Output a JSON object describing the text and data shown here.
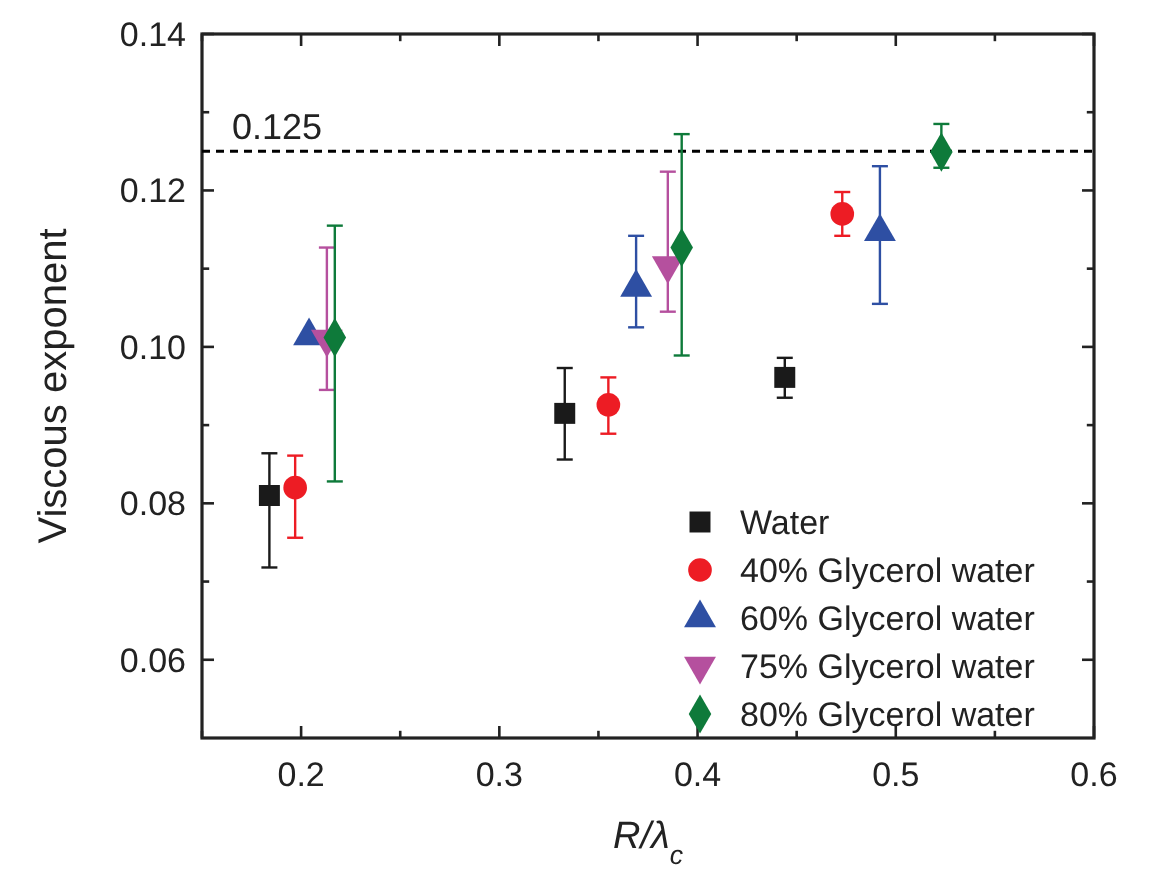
{
  "chart_data": {
    "type": "scatter",
    "xlabel": "R/λ$_{c}$",
    "ylabel": "Viscous exponent",
    "xlim": [
      0.15,
      0.6
    ],
    "xticks": [
      {
        "value": 0.15,
        "label": null
      },
      0.2,
      {
        "value": 0.25,
        "label": null
      },
      0.3,
      {
        "value": 0.35,
        "label": null
      },
      0.4,
      {
        "value": 0.45,
        "label": null
      },
      0.5,
      {
        "value": 0.55,
        "label": null
      },
      0.6
    ],
    "ylim": [
      0.05,
      0.14
    ],
    "yticks": [
      {
        "value": 0.06,
        "label": "0.06"
      },
      {
        "value": 0.07,
        "label": null
      },
      {
        "value": 0.08,
        "label": "0.08"
      },
      {
        "value": 0.09,
        "label": null
      },
      {
        "value": 0.1,
        "label": "0.10"
      },
      {
        "value": 0.11,
        "label": null
      },
      {
        "value": 0.12,
        "label": "0.12"
      },
      {
        "value": 0.13,
        "label": null
      },
      {
        "value": 0.14,
        "label": "0.14"
      }
    ],
    "grid": false,
    "legend": "bottom right",
    "ref_lines": [
      {
        "axis": "y",
        "value": 0.125,
        "label": "0.125",
        "line_style": "dashed",
        "color": "#000000"
      }
    ],
    "series": [
      {
        "name": "Water",
        "color": "#1a1a1a",
        "marker": "square",
        "x": [
          0.184,
          0.333,
          0.444
        ],
        "values": [
          0.081,
          0.0915,
          0.0961
        ],
        "errors": [
          [
            0.0718,
            0.0864
          ],
          [
            0.0856,
            0.0973
          ],
          [
            0.0935,
            0.0986
          ]
        ]
      },
      {
        "name": "40% Glycerol water",
        "color": "#ed1c24",
        "marker": "circle",
        "x": [
          0.197,
          0.355,
          0.473
        ],
        "values": [
          0.082,
          0.0926,
          0.117
        ],
        "errors": [
          [
            0.0756,
            0.0861
          ],
          [
            0.0889,
            0.0961
          ],
          [
            0.1142,
            0.1198
          ]
        ]
      },
      {
        "name": "60% Glycerol water",
        "color": "#2e4fa3",
        "marker": "triangle",
        "x": [
          0.204,
          0.369,
          0.492
        ],
        "values": [
          0.1014,
          0.1076,
          0.1147
        ],
        "errors": [
          null,
          [
            0.1025,
            0.1142
          ],
          [
            0.1055,
            0.1231
          ]
        ]
      },
      {
        "name": "75% Glycerol water",
        "color": "#b5509e",
        "marker": "triangle-down",
        "x": [
          0.213,
          0.385
        ],
        "values": [
          0.101,
          0.1104
        ],
        "errors": [
          [
            0.0945,
            0.1127
          ],
          [
            0.1045,
            0.1224
          ]
        ]
      },
      {
        "name": "80% Glycerol water",
        "color": "#0e7a3a",
        "marker": "diamond",
        "x": [
          0.217,
          0.392,
          0.523
        ],
        "values": [
          0.1012,
          0.1127,
          0.1249
        ],
        "errors": [
          [
            0.0828,
            0.1155
          ],
          [
            0.0989,
            0.1272
          ],
          [
            0.1229,
            0.1285
          ]
        ]
      }
    ]
  }
}
